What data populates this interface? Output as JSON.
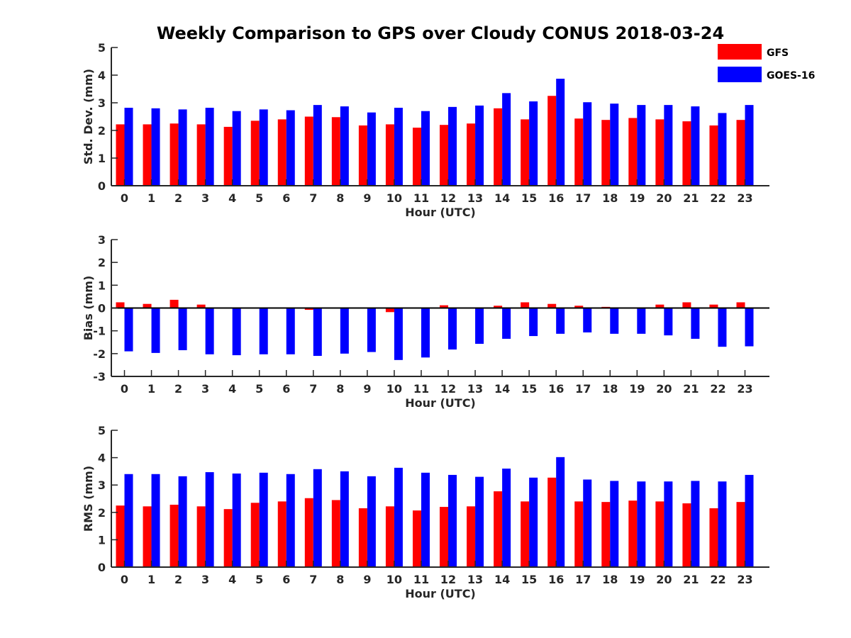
{
  "title": "Weekly Comparison to GPS over Cloudy CONUS 2018-03-24",
  "legend": {
    "position": "top-right",
    "entries": [
      {
        "name": "GFS",
        "color": "#ff0000"
      },
      {
        "name": "GOES-16",
        "color": "#0000ff"
      }
    ]
  },
  "chart_data": [
    {
      "type": "bar",
      "xlabel": "Hour (UTC)",
      "ylabel": "Std. Dev. (mm)",
      "ylim": [
        0,
        5
      ],
      "yticks": [
        0,
        1,
        2,
        3,
        4,
        5
      ],
      "grid": false,
      "categories": [
        "0",
        "1",
        "2",
        "3",
        "4",
        "5",
        "6",
        "7",
        "8",
        "9",
        "10",
        "11",
        "12",
        "13",
        "14",
        "15",
        "16",
        "17",
        "18",
        "19",
        "20",
        "21",
        "22",
        "23"
      ],
      "series": [
        {
          "name": "GFS",
          "color": "#ff0000",
          "values": [
            2.22,
            2.22,
            2.25,
            2.22,
            2.13,
            2.35,
            2.4,
            2.5,
            2.48,
            2.18,
            2.22,
            2.1,
            2.2,
            2.25,
            2.8,
            2.4,
            3.25,
            2.43,
            2.38,
            2.45,
            2.4,
            2.33,
            2.18,
            2.38
          ]
        },
        {
          "name": "GOES-16",
          "color": "#0000ff",
          "values": [
            2.82,
            2.8,
            2.76,
            2.82,
            2.7,
            2.76,
            2.73,
            2.92,
            2.87,
            2.65,
            2.82,
            2.7,
            2.85,
            2.9,
            3.35,
            3.05,
            3.87,
            3.02,
            2.97,
            2.92,
            2.92,
            2.87,
            2.63,
            2.92
          ]
        }
      ]
    },
    {
      "type": "bar",
      "xlabel": "Hour (UTC)",
      "ylabel": "Bias (mm)",
      "ylim": [
        -3,
        3
      ],
      "yticks": [
        -3,
        -2,
        -1,
        0,
        1,
        2,
        3
      ],
      "grid": false,
      "zero_line": true,
      "categories": [
        "0",
        "1",
        "2",
        "3",
        "4",
        "5",
        "6",
        "7",
        "8",
        "9",
        "10",
        "11",
        "12",
        "13",
        "14",
        "15",
        "16",
        "17",
        "18",
        "19",
        "20",
        "21",
        "22",
        "23"
      ],
      "series": [
        {
          "name": "GFS",
          "color": "#ff0000",
          "values": [
            0.25,
            0.18,
            0.36,
            0.15,
            -0.02,
            -0.03,
            -0.02,
            -0.08,
            -0.03,
            -0.02,
            -0.18,
            -0.02,
            0.12,
            0.03,
            0.1,
            0.25,
            0.18,
            0.1,
            0.05,
            0.01,
            0.15,
            0.25,
            0.15,
            0.25
          ]
        },
        {
          "name": "GOES-16",
          "color": "#0000ff",
          "values": [
            -1.9,
            -1.97,
            -1.85,
            -2.03,
            -2.07,
            -2.03,
            -2.03,
            -2.1,
            -2.0,
            -1.93,
            -2.28,
            -2.17,
            -1.82,
            -1.57,
            -1.35,
            -1.23,
            -1.13,
            -1.07,
            -1.13,
            -1.13,
            -1.2,
            -1.35,
            -1.7,
            -1.68
          ]
        }
      ]
    },
    {
      "type": "bar",
      "xlabel": "Hour (UTC)",
      "ylabel": "RMS (mm)",
      "ylim": [
        0,
        5
      ],
      "yticks": [
        0,
        1,
        2,
        3,
        4,
        5
      ],
      "grid": false,
      "categories": [
        "0",
        "1",
        "2",
        "3",
        "4",
        "5",
        "6",
        "7",
        "8",
        "9",
        "10",
        "11",
        "12",
        "13",
        "14",
        "15",
        "16",
        "17",
        "18",
        "19",
        "20",
        "21",
        "22",
        "23"
      ],
      "series": [
        {
          "name": "GFS",
          "color": "#ff0000",
          "values": [
            2.25,
            2.22,
            2.28,
            2.22,
            2.12,
            2.35,
            2.4,
            2.52,
            2.45,
            2.15,
            2.22,
            2.07,
            2.2,
            2.22,
            2.77,
            2.4,
            3.27,
            2.4,
            2.38,
            2.43,
            2.4,
            2.33,
            2.15,
            2.38
          ]
        },
        {
          "name": "GOES-16",
          "color": "#0000ff",
          "values": [
            3.4,
            3.4,
            3.32,
            3.47,
            3.42,
            3.45,
            3.4,
            3.58,
            3.5,
            3.32,
            3.63,
            3.45,
            3.37,
            3.3,
            3.6,
            3.27,
            4.02,
            3.2,
            3.15,
            3.13,
            3.13,
            3.15,
            3.13,
            3.37
          ]
        }
      ]
    }
  ]
}
